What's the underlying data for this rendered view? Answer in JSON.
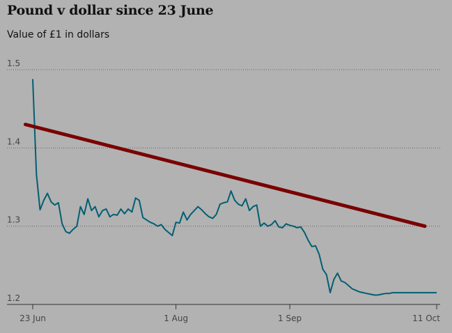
{
  "chart_data": {
    "type": "line",
    "title": "Pound v dollar since 23 June",
    "subtitle": "Value of £1 in dollars",
    "xlabel": "",
    "ylabel": "",
    "ylim": [
      1.2,
      1.5
    ],
    "yticks": [
      1.2,
      1.3,
      1.4,
      1.5
    ],
    "ytick_labels": [
      "1.2",
      "1.3",
      "1.4",
      "1.5"
    ],
    "xticks": [
      {
        "label": "23 Jun",
        "day": 0
      },
      {
        "label": "1 Aug",
        "day": 39
      },
      {
        "label": "1 Sep",
        "day": 70
      },
      {
        "label": "11 Oct",
        "day": 110
      }
    ],
    "x_start": "23 June",
    "grid": "horizontal dotted",
    "colors": {
      "series": "#005f73",
      "trend": "#7a0000",
      "background": "#b2b2b2"
    },
    "series": [
      {
        "x": [
          0,
          1,
          2,
          3,
          4,
          5,
          6,
          7,
          8,
          9,
          10,
          11,
          12,
          13,
          14,
          15,
          16,
          17,
          18,
          19,
          20,
          21,
          22,
          23,
          24,
          25,
          26,
          27,
          28,
          29,
          30,
          31,
          32,
          33,
          34,
          35,
          36,
          37,
          38,
          39,
          40,
          41,
          42,
          43,
          44,
          45,
          46,
          47,
          48,
          49,
          50,
          51,
          52,
          53,
          54,
          55,
          56,
          57,
          58,
          59,
          60,
          61,
          62,
          63,
          64,
          65,
          66,
          67,
          68,
          69,
          70,
          71,
          72,
          73,
          74,
          75,
          76,
          77,
          78,
          79,
          80,
          81,
          82,
          83,
          84,
          85,
          86,
          87,
          88,
          89,
          90,
          91,
          92,
          93,
          94,
          95,
          96,
          97,
          98,
          99,
          100,
          101,
          102,
          103,
          104,
          105,
          106,
          107,
          108,
          109,
          110
        ],
        "values": [
          1.488,
          1.366,
          1.321,
          1.333,
          1.342,
          1.331,
          1.327,
          1.33,
          1.303,
          1.293,
          1.291,
          1.296,
          1.3,
          1.325,
          1.315,
          1.335,
          1.32,
          1.325,
          1.312,
          1.32,
          1.322,
          1.312,
          1.315,
          1.314,
          1.322,
          1.316,
          1.322,
          1.318,
          1.336,
          1.333,
          1.311,
          1.308,
          1.305,
          1.303,
          1.3,
          1.302,
          1.296,
          1.292,
          1.288,
          1.305,
          1.304,
          1.318,
          1.308,
          1.315,
          1.32,
          1.325,
          1.321,
          1.316,
          1.312,
          1.31,
          1.315,
          1.328,
          1.33,
          1.331,
          1.345,
          1.333,
          1.328,
          1.326,
          1.335,
          1.32,
          1.325,
          1.327,
          1.3,
          1.304,
          1.3,
          1.302,
          1.307,
          1.299,
          1.298,
          1.303,
          1.301,
          1.3,
          1.298,
          1.299,
          1.292,
          1.282,
          1.274,
          1.275,
          1.264,
          1.245,
          1.238,
          1.215,
          1.232,
          1.24,
          1.23,
          1.228,
          1.224,
          1.22,
          1.218,
          1.216,
          1.215,
          1.214,
          1.213,
          1.212,
          1.212,
          1.213,
          1.214,
          1.214,
          1.215,
          1.215,
          1.215,
          1.215,
          1.215,
          1.215,
          1.215,
          1.215,
          1.215,
          1.215,
          1.215,
          1.215,
          1.215
        ]
      }
    ],
    "annotations": [
      {
        "type": "trend-line",
        "from": {
          "day": -2,
          "value": 1.43
        },
        "to": {
          "day": 110,
          "value": 1.3
        }
      }
    ]
  }
}
